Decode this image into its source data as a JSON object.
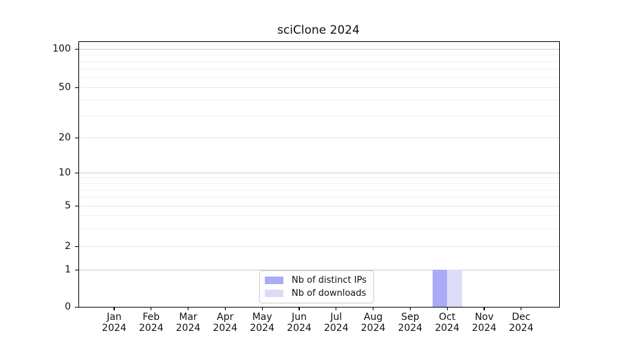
{
  "chart_data": {
    "type": "bar",
    "title": "sciClone 2024",
    "categories": [
      "Jan 2024",
      "Feb 2024",
      "Mar 2024",
      "Apr 2024",
      "May 2024",
      "Jun 2024",
      "Jul 2024",
      "Aug 2024",
      "Sep 2024",
      "Oct 2024",
      "Nov 2024",
      "Dec 2024"
    ],
    "series": [
      {
        "name": "Nb of distinct IPs",
        "color": "#aaabf6",
        "values": [
          0,
          0,
          0,
          0,
          0,
          0,
          0,
          0,
          0,
          1,
          0,
          0
        ]
      },
      {
        "name": "Nb of downloads",
        "color": "#dddcf8",
        "values": [
          0,
          0,
          0,
          0,
          0,
          0,
          0,
          0,
          0,
          1,
          0,
          0
        ]
      }
    ],
    "xlabel": "",
    "ylabel": "",
    "y_axis": {
      "scale": "symlog",
      "ticks": [
        0,
        1,
        2,
        5,
        10,
        20,
        50,
        100
      ],
      "minor_ticks": [
        3,
        4,
        6,
        7,
        8,
        9,
        30,
        40,
        60,
        70,
        80,
        90
      ],
      "range": [
        0,
        110
      ]
    },
    "grid": true,
    "legend": {
      "position": "bottom-center",
      "entries": [
        "Nb of distinct IPs",
        "Nb of downloads"
      ]
    }
  }
}
